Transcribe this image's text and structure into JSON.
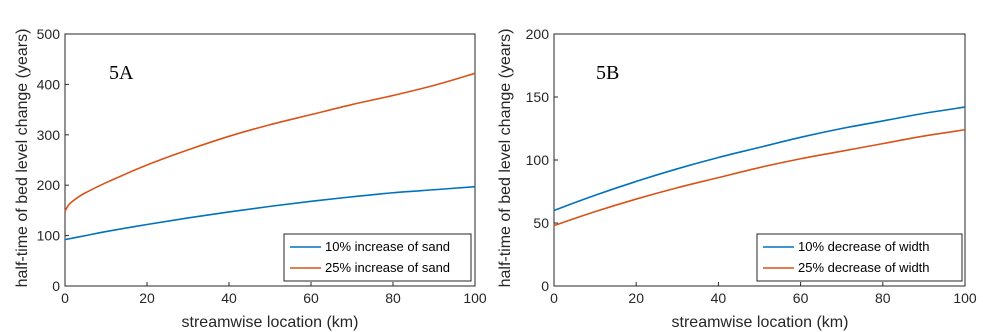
{
  "chart_data": [
    {
      "type": "line",
      "panel_label": "5A",
      "xlabel": "streamwise location (km)",
      "ylabel": "half-time of bed level change (years)",
      "xlim": [
        0,
        100
      ],
      "ylim": [
        0,
        500
      ],
      "xticks": [
        0,
        20,
        40,
        60,
        80,
        100
      ],
      "yticks": [
        0,
        100,
        200,
        300,
        400,
        500
      ],
      "legend_position": "bottom-right",
      "series": [
        {
          "name": "10% increase of sand",
          "color": "#0072BD",
          "x": [
            0,
            5,
            10,
            20,
            30,
            40,
            50,
            60,
            70,
            80,
            90,
            100
          ],
          "y": [
            92,
            100,
            108,
            122,
            135,
            147,
            158,
            168,
            177,
            185,
            191,
            197
          ]
        },
        {
          "name": "25% increase of sand",
          "color": "#D95319",
          "x": [
            0,
            1,
            3,
            5,
            10,
            20,
            30,
            40,
            50,
            60,
            70,
            80,
            90,
            100
          ],
          "y": [
            148,
            162,
            175,
            185,
            205,
            240,
            270,
            297,
            320,
            340,
            360,
            378,
            398,
            422
          ]
        }
      ]
    },
    {
      "type": "line",
      "panel_label": "5B",
      "xlabel": "streamwise location (km)",
      "ylabel": "half-time of bed level change (years)",
      "xlim": [
        0,
        100
      ],
      "ylim": [
        0,
        200
      ],
      "xticks": [
        0,
        20,
        40,
        60,
        80,
        100
      ],
      "yticks": [
        0,
        50,
        100,
        150,
        200
      ],
      "legend_position": "bottom-right",
      "series": [
        {
          "name": "10% decrease of width",
          "color": "#0072BD",
          "x": [
            0,
            10,
            20,
            30,
            40,
            50,
            60,
            70,
            80,
            90,
            100
          ],
          "y": [
            60,
            72,
            83,
            93,
            102,
            110,
            118,
            125,
            131,
            137,
            142
          ]
        },
        {
          "name": "25% decrease of width",
          "color": "#D95319",
          "x": [
            0,
            10,
            20,
            30,
            40,
            50,
            60,
            70,
            80,
            90,
            100
          ],
          "y": [
            48,
            59,
            69,
            78,
            86,
            94,
            101,
            107,
            113,
            119,
            124
          ]
        }
      ]
    }
  ]
}
